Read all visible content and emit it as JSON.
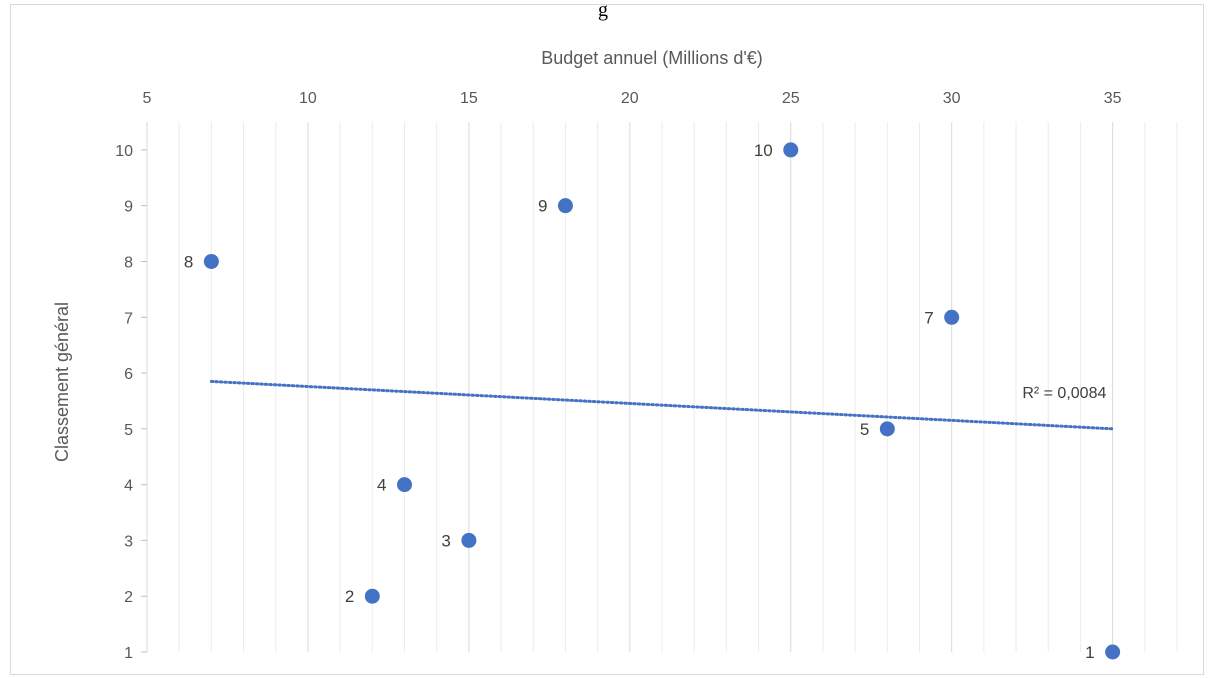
{
  "chart_data": {
    "type": "scatter",
    "title": "",
    "title_fragment": "g",
    "xlabel": "Budget annuel (Millions d'€)",
    "ylabel": "Classement général",
    "xlim": [
      5,
      37
    ],
    "ylim": [
      1,
      10.5
    ],
    "x_ticks": [
      5,
      10,
      15,
      20,
      25,
      30,
      35
    ],
    "y_ticks": [
      1,
      2,
      3,
      4,
      5,
      6,
      7,
      8,
      9,
      10
    ],
    "x_axis_position": "top",
    "grid": "vertical major and minor",
    "series": [
      {
        "points": [
          {
            "x": 35,
            "y": 1,
            "label": "1"
          },
          {
            "x": 12,
            "y": 2,
            "label": "2"
          },
          {
            "x": 15,
            "y": 3,
            "label": "3"
          },
          {
            "x": 13,
            "y": 4,
            "label": "4"
          },
          {
            "x": 28,
            "y": 5,
            "label": "5"
          },
          {
            "x": 30,
            "y": 7,
            "label": "7"
          },
          {
            "x": 7,
            "y": 8,
            "label": "8"
          },
          {
            "x": 18,
            "y": 9,
            "label": "9"
          },
          {
            "x": 25,
            "y": 10,
            "label": "10"
          }
        ],
        "color": "#4472c4"
      }
    ],
    "trendline": {
      "type": "linear",
      "from": {
        "x": 7,
        "y": 5.85
      },
      "to": {
        "x": 35,
        "y": 5.0
      },
      "r2_label": "R² = 0,0084",
      "color": "#4472c4",
      "style": "dotted"
    }
  }
}
